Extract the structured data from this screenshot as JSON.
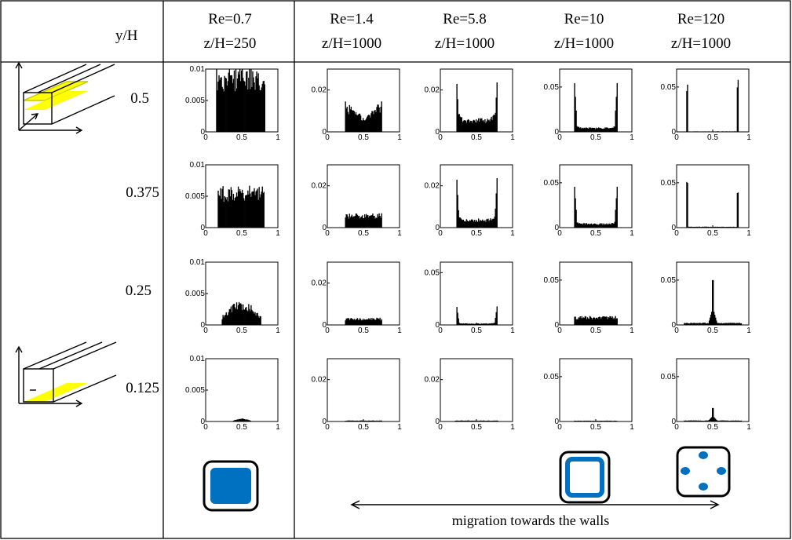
{
  "header": {
    "row_label": "y/H",
    "columns": [
      {
        "re": "Re=0.7",
        "z": "z/H=250"
      },
      {
        "re": "Re=1.4",
        "z": "z/H=1000"
      },
      {
        "re": "Re=5.8",
        "z": "z/H=1000"
      },
      {
        "re": "Re=10",
        "z": "z/H=1000"
      },
      {
        "re": "Re=120",
        "z": "z/H=1000"
      }
    ]
  },
  "rows": [
    "0.5",
    "0.375",
    "0.25",
    "0.125"
  ],
  "footer": {
    "migration_label": "migration towards the walls"
  },
  "colors": {
    "cross_section": "#0070c0",
    "plane": "#ffff00",
    "bars": "#000000"
  },
  "icons": [
    "channel-midplane-icon",
    "channel-quarterplane-icon",
    "square-fill-icon",
    "square-ring-icon",
    "four-dots-icon"
  ],
  "chart_data": {
    "type": "histogram-grid",
    "xlabel": "",
    "ylabel": "",
    "xlim": [
      0,
      1
    ],
    "x_ticks": [
      "0",
      "0.5",
      "1"
    ],
    "columns": [
      "Re=0.7 z/H=250",
      "Re=1.4 z/H=1000",
      "Re=5.8 z/H=1000",
      "Re=10 z/H=1000",
      "Re=120 z/H=1000"
    ],
    "y_ticks_by_column": [
      [
        "0",
        "0.005",
        "0.01"
      ],
      [
        "0",
        "0.02"
      ],
      [
        "0",
        "0.02"
      ],
      [
        "0",
        "0.05"
      ],
      [
        "0",
        "0.05"
      ]
    ],
    "ylim_by_column": [
      [
        0,
        0.01
      ],
      [
        0,
        0.03
      ],
      [
        0,
        0.03
      ],
      [
        0,
        0.07
      ],
      [
        0,
        0.07
      ]
    ],
    "ylim_override": {
      "2_2": [
        0,
        0.06
      ]
    },
    "y_ticks_override": {
      "2_2": [
        "0",
        "0.05"
      ]
    },
    "panels": [
      [
        {
          "shape": "flat",
          "lo": 0.15,
          "hi": 0.82,
          "level": 0.0085
        },
        {
          "shape": "flat",
          "lo": 0.17,
          "hi": 0.81,
          "level": 0.0054
        },
        {
          "shape": "dome",
          "lo": 0.22,
          "hi": 0.77,
          "level": 0.0031
        },
        {
          "shape": "dome",
          "lo": 0.38,
          "hi": 0.62,
          "level": 0.0004
        }
      ],
      [
        {
          "shape": "saddle",
          "lo": 0.25,
          "hi": 0.75,
          "level": 0.01
        },
        {
          "shape": "flat",
          "lo": 0.25,
          "hi": 0.75,
          "level": 0.0055
        },
        {
          "shape": "flat",
          "lo": 0.25,
          "hi": 0.75,
          "level": 0.0028
        },
        {
          "shape": "flat",
          "lo": 0.25,
          "hi": 0.75,
          "level": 0.0004
        }
      ],
      [
        {
          "shape": "ushape",
          "lo": 0.22,
          "hi": 0.79,
          "level": 0.0055,
          "peak": 0.028
        },
        {
          "shape": "ushape",
          "lo": 0.22,
          "hi": 0.79,
          "level": 0.0035,
          "peak": 0.028
        },
        {
          "shape": "ushape",
          "lo": 0.22,
          "hi": 0.79,
          "level": 0.0012,
          "peak": 0.021
        },
        {
          "shape": "flat",
          "lo": 0.2,
          "hi": 0.8,
          "level": 0.0004
        }
      ],
      [
        {
          "shape": "ushape",
          "lo": 0.2,
          "hi": 0.8,
          "level": 0.004,
          "peak": 0.062
        },
        {
          "shape": "ushape",
          "lo": 0.2,
          "hi": 0.8,
          "level": 0.004,
          "peak": 0.052
        },
        {
          "shape": "flat",
          "lo": 0.2,
          "hi": 0.8,
          "level": 0.008
        },
        {
          "shape": "flat",
          "lo": 0.2,
          "hi": 0.8,
          "level": 0.0008
        }
      ],
      [
        {
          "shape": "twin",
          "lo": 0.13,
          "hi": 0.86,
          "level": 0.0008,
          "peak": 0.066
        },
        {
          "shape": "twin",
          "lo": 0.13,
          "hi": 0.86,
          "level": 0.0015,
          "peak": 0.06
        },
        {
          "shape": "center",
          "lo": 0.1,
          "hi": 0.9,
          "level": 0.002,
          "peak": 0.05
        },
        {
          "shape": "center",
          "lo": 0.1,
          "hi": 0.9,
          "level": 0.001,
          "peak": 0.015
        }
      ]
    ]
  }
}
